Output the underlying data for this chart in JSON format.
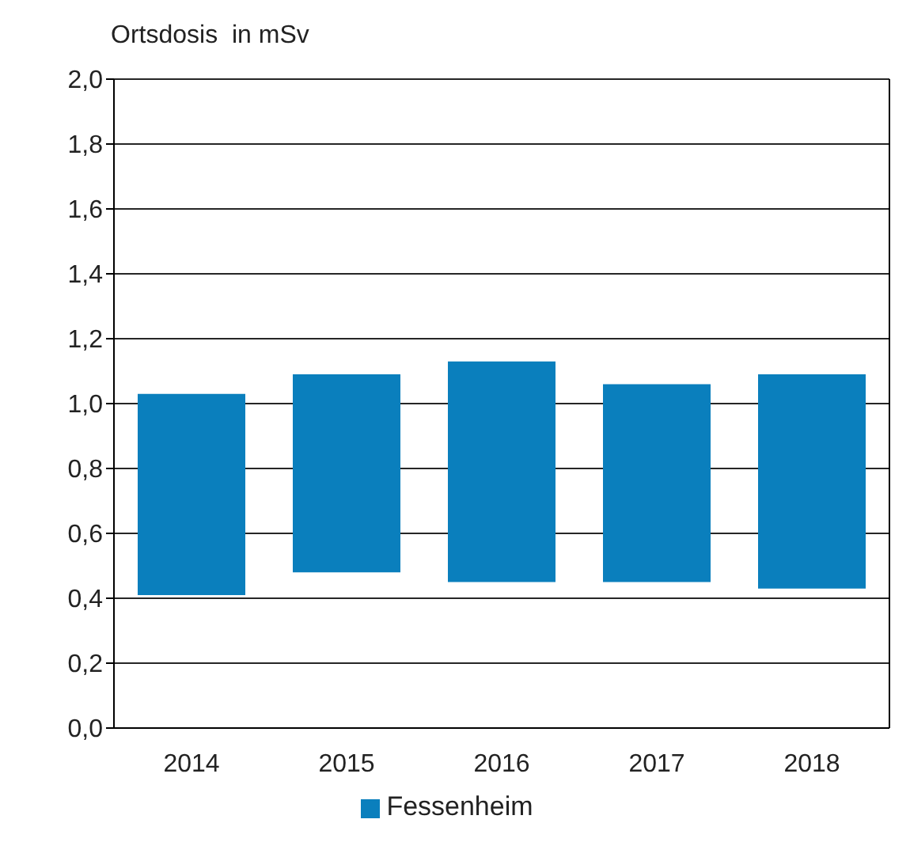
{
  "chart_data": {
    "type": "bar",
    "ylabel": "Ortsdosis  in mSv",
    "categories": [
      "2014",
      "2015",
      "2016",
      "2017",
      "2018"
    ],
    "series": [
      {
        "name": "Fessenheim",
        "color": "#0a7fbd",
        "values": [
          0.62,
          0.61,
          0.68,
          0.61,
          0.66
        ],
        "base": [
          0.41,
          0.48,
          0.45,
          0.45,
          0.43
        ]
      }
    ],
    "ylim": [
      0,
      2
    ],
    "yticks": [
      {
        "value": 0,
        "label": "0,0"
      },
      {
        "value": 0.2,
        "label": "0,2"
      },
      {
        "value": 0.4,
        "label": "0,4"
      },
      {
        "value": 0.6,
        "label": "0,6"
      },
      {
        "value": 0.8,
        "label": "0,8"
      },
      {
        "value": 1,
        "label": "1,0"
      },
      {
        "value": 1.2,
        "label": "1,2"
      },
      {
        "value": 1.4,
        "label": "1,4"
      },
      {
        "value": 1.6,
        "label": "1,6"
      },
      {
        "value": 1.8,
        "label": "1,8"
      },
      {
        "value": 2,
        "label": "2,0"
      }
    ],
    "grid": "y",
    "legend": "bottom"
  }
}
